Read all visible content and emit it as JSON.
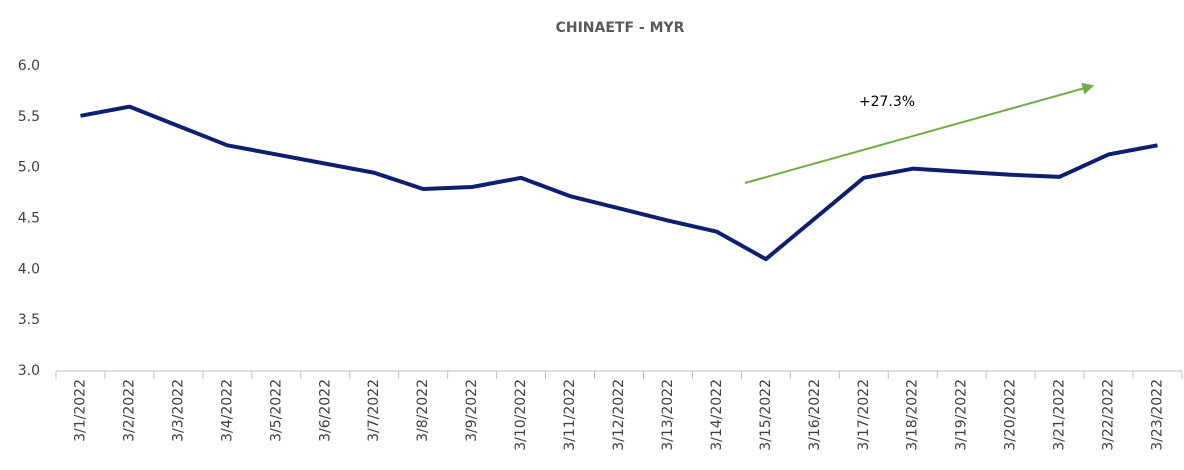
{
  "chart_data": {
    "type": "line",
    "title": "CHINAETF - MYR",
    "categories": [
      "3/1/2022",
      "3/2/2022",
      "3/3/2022",
      "3/4/2022",
      "3/5/2022",
      "3/6/2022",
      "3/7/2022",
      "3/8/2022",
      "3/9/2022",
      "3/10/2022",
      "3/11/2022",
      "3/12/2022",
      "3/13/2022",
      "3/14/2022",
      "3/15/2022",
      "3/16/2022",
      "3/17/2022",
      "3/18/2022",
      "3/19/2022",
      "3/20/2022",
      "3/21/2022",
      "3/22/2022",
      "3/23/2022"
    ],
    "series": [
      {
        "name": "CHINAETF",
        "color": "#0d1f6e",
        "values": [
          5.51,
          5.6,
          5.41,
          5.22,
          5.13,
          5.04,
          4.95,
          4.79,
          4.81,
          4.9,
          4.72,
          4.6,
          4.48,
          4.37,
          4.1,
          4.5,
          4.9,
          4.99,
          4.96,
          4.93,
          4.91,
          5.13,
          5.22
        ]
      }
    ],
    "ylim": [
      3,
      6
    ],
    "yticks": [
      {
        "value": 3,
        "label": "3.0"
      },
      3.5,
      {
        "value": 4,
        "label": "4.0"
      },
      4.5,
      {
        "value": 5,
        "label": "5.0"
      },
      5.5,
      {
        "value": 6,
        "label": "6.0"
      }
    ],
    "grid": false,
    "annotation": "+27.3%",
    "annotation_color": "#70ad47"
  }
}
